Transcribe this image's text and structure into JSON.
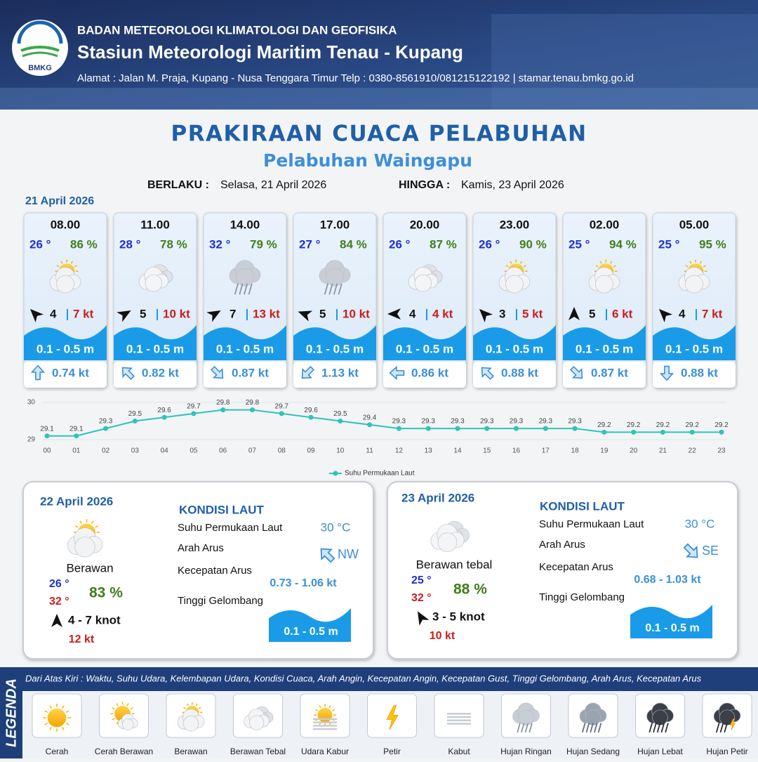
{
  "header": {
    "logo_text": "BMKG",
    "agency": "BADAN METEOROLOGI KLIMATOLOGI DAN GEOFISIKA",
    "station": "Stasiun Meteorologi Maritim Tenau - Kupang",
    "address": "Alamat : Jalan M. Praja, Kupang - Nusa Tenggara Timur Telp : 0380-8561910/081215122192  | stamar.tenau.bmkg.go.id"
  },
  "title": "PRAKIRAAN CUACA PELABUHAN",
  "subtitle": "Pelabuhan Waingapu",
  "validity": {
    "from_label": "BERLAKU :",
    "from": "Selasa, 21 April 2026",
    "to_label": "HINGGA :",
    "to": "Kamis, 23 April 2026"
  },
  "day1": {
    "date": "21 April 2026",
    "cards": [
      {
        "time": "08.00",
        "temp": "26 °",
        "humidity": "86 %",
        "condition": "Berawan",
        "wind_deg": -45,
        "wind": "4",
        "gust": "7 kt",
        "wave": "0.1 - 0.5 m",
        "current_deg": 0,
        "current": "0.74 kt"
      },
      {
        "time": "11.00",
        "temp": "28 °",
        "humidity": "78 %",
        "condition": "Berawan Tebal",
        "wind_deg": 60,
        "wind": "5",
        "gust": "10 kt",
        "wave": "0.1 - 0.5 m",
        "current_deg": -45,
        "current": "0.82 kt"
      },
      {
        "time": "14.00",
        "temp": "32 °",
        "humidity": "79 %",
        "condition": "Hujan Ringan",
        "wind_deg": 60,
        "wind": "7",
        "gust": "13 kt",
        "wave": "0.1 - 0.5 m",
        "current_deg": 135,
        "current": "0.87 kt"
      },
      {
        "time": "17.00",
        "temp": "27 °",
        "humidity": "84 %",
        "condition": "Hujan Ringan",
        "wind_deg": -70,
        "wind": "5",
        "gust": "10 kt",
        "wave": "0.1 - 0.5 m",
        "current_deg": 225,
        "current": "1.13 kt"
      },
      {
        "time": "20.00",
        "temp": "26 °",
        "humidity": "87 %",
        "condition": "Berawan Tebal",
        "wind_deg": -90,
        "wind": "4",
        "gust": "4 kt",
        "wave": "0.1 - 0.5 m",
        "current_deg": -90,
        "current": "0.86 kt"
      },
      {
        "time": "23.00",
        "temp": "26 °",
        "humidity": "90 %",
        "condition": "Berawan",
        "wind_deg": -45,
        "wind": "3",
        "gust": "5 kt",
        "wave": "0.1 - 0.5 m",
        "current_deg": -45,
        "current": "0.88 kt"
      },
      {
        "time": "02.00",
        "temp": "25 °",
        "humidity": "94 %",
        "condition": "Berawan",
        "wind_deg": 0,
        "wind": "5",
        "gust": "6 kt",
        "wave": "0.1 - 0.5 m",
        "current_deg": 135,
        "current": "0.87 kt"
      },
      {
        "time": "05.00",
        "temp": "25 °",
        "humidity": "95 %",
        "condition": "Berawan",
        "wind_deg": -45,
        "wind": "4",
        "gust": "7 kt",
        "wave": "0.1 - 0.5 m",
        "current_deg": 180,
        "current": "0.88 kt"
      }
    ]
  },
  "chart_data": {
    "type": "line",
    "categories": [
      "00",
      "01",
      "02",
      "03",
      "04",
      "05",
      "06",
      "07",
      "08",
      "09",
      "10",
      "11",
      "12",
      "13",
      "14",
      "15",
      "16",
      "17",
      "18",
      "19",
      "20",
      "21",
      "22",
      "23"
    ],
    "series": [
      {
        "name": "Suhu Permukaan Laut",
        "color": "#2ec4b6",
        "values": [
          29.1,
          29.1,
          29.3,
          29.5,
          29.6,
          29.7,
          29.8,
          29.8,
          29.7,
          29.6,
          29.5,
          29.4,
          29.3,
          29.3,
          29.3,
          29.3,
          29.3,
          29.3,
          29.3,
          29.2,
          29.2,
          29.2,
          29.2,
          29.2
        ]
      }
    ],
    "ylim": [
      29,
      30
    ],
    "yticks": [
      29,
      30
    ],
    "grid": true
  },
  "days": [
    {
      "date": "22 April 2026",
      "condition": "Berawan",
      "temp_min": "26 °",
      "temp_max": "32 °",
      "humidity": "83 %",
      "wind_deg": 0,
      "wind": "4  - 7 knot",
      "gust": "12 kt",
      "sea_title": "KONDISI LAUT",
      "sst_label": "Suhu Permukaan Laut",
      "sst": "30 °C",
      "current_dir_label": "Arah Arus",
      "current_dir": "NW",
      "current_deg": -45,
      "current_speed_label": "Kecepatan Arus",
      "current_speed": "0.73 - 1.06 kt",
      "wave_label": "Tinggi Gelombang",
      "wave": "0.1 - 0.5 m"
    },
    {
      "date": "23 April 2026",
      "condition": "Berawan tebal",
      "temp_min": "25 °",
      "temp_max": "32 °",
      "humidity": "88 %",
      "wind_deg": -30,
      "wind": "3  - 5 knot",
      "gust": "10 kt",
      "sea_title": "KONDISI LAUT",
      "sst_label": "Suhu Permukaan Laut",
      "sst": "30 °C",
      "current_dir_label": "Arah Arus",
      "current_dir": "SE",
      "current_deg": 135,
      "current_speed_label": "Kecepatan Arus",
      "current_speed": "0.68 - 1.03 kt",
      "wave_label": "Tinggi Gelombang",
      "wave": "0.1 - 0.5 m"
    }
  ],
  "legend": {
    "title": "LEGENDA",
    "description": "Dari Atas Kiri : Waktu, Suhu Udara, Kelembapan Udara, Kondisi Cuaca, Arah Angin, Kecepatan Angin, Kecepatan Gust, Tinggi Gelombang, Arah Arus, Kecepatan Arus",
    "items": [
      "Cerah",
      "Cerah Berawan",
      "Berawan",
      "Berawan Tebal",
      "Udara Kabur",
      "Petir",
      "Kabut",
      "Hujan Ringan",
      "Hujan Sedang",
      "Hujan Lebat",
      "Hujan Petir"
    ]
  }
}
